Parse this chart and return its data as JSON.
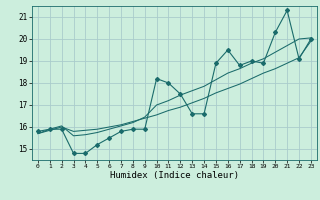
{
  "xlabel": "Humidex (Indice chaleur)",
  "bg_color": "#cceedd",
  "grid_color": "#aacccc",
  "line_color": "#1a6b6b",
  "x_values": [
    0,
    1,
    2,
    3,
    4,
    5,
    6,
    7,
    8,
    9,
    10,
    11,
    12,
    13,
    14,
    15,
    16,
    17,
    18,
    19,
    20,
    21,
    22,
    23
  ],
  "y_main": [
    15.8,
    15.9,
    15.9,
    14.8,
    14.8,
    15.2,
    15.5,
    15.8,
    15.9,
    15.9,
    18.2,
    18.0,
    17.5,
    16.6,
    16.6,
    18.9,
    19.5,
    18.8,
    19.0,
    18.9,
    20.3,
    21.3,
    19.1,
    20.0
  ],
  "y_trend1": [
    15.7,
    15.85,
    16.0,
    15.8,
    15.85,
    15.9,
    16.0,
    16.1,
    16.25,
    16.4,
    16.55,
    16.75,
    16.9,
    17.1,
    17.3,
    17.55,
    17.75,
    17.95,
    18.2,
    18.45,
    18.65,
    18.9,
    19.15,
    19.9
  ],
  "y_trend2": [
    15.7,
    15.9,
    16.05,
    15.6,
    15.65,
    15.75,
    15.9,
    16.05,
    16.2,
    16.45,
    17.0,
    17.2,
    17.45,
    17.65,
    17.85,
    18.15,
    18.45,
    18.65,
    18.9,
    19.1,
    19.4,
    19.7,
    20.0,
    20.05
  ],
  "xlim": [
    -0.5,
    23.5
  ],
  "ylim": [
    14.5,
    21.5
  ],
  "yticks": [
    15,
    16,
    17,
    18,
    19,
    20,
    21
  ],
  "xticks": [
    0,
    1,
    2,
    3,
    4,
    5,
    6,
    7,
    8,
    9,
    10,
    11,
    12,
    13,
    14,
    15,
    16,
    17,
    18,
    19,
    20,
    21,
    22,
    23
  ]
}
